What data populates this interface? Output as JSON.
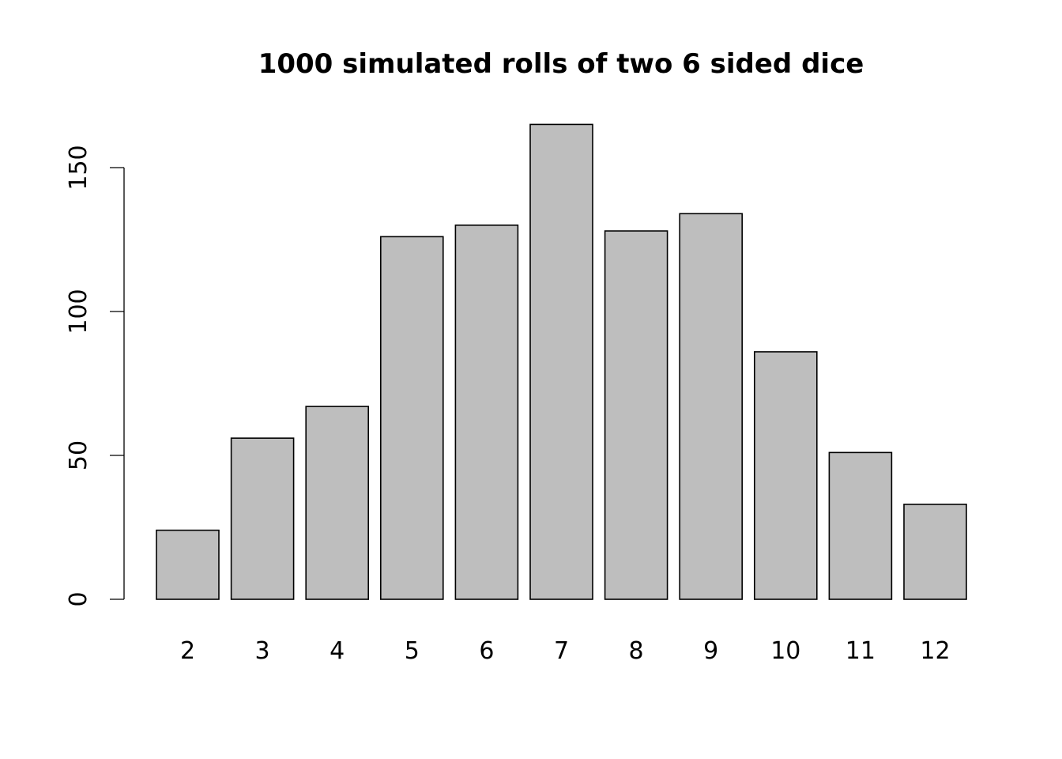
{
  "chart_data": {
    "type": "bar",
    "title": "1000 simulated rolls of two 6 sided dice",
    "xlabel": "",
    "ylabel": "",
    "categories": [
      "2",
      "3",
      "4",
      "5",
      "6",
      "7",
      "8",
      "9",
      "10",
      "11",
      "12"
    ],
    "values": [
      24,
      56,
      67,
      126,
      130,
      165,
      128,
      134,
      86,
      51,
      33
    ],
    "ylim": [
      0,
      165
    ],
    "yticks": [
      0,
      50,
      100,
      150
    ],
    "bar_color": "#bebebe",
    "border_color": "#000000",
    "grid": false,
    "legend": "none"
  }
}
